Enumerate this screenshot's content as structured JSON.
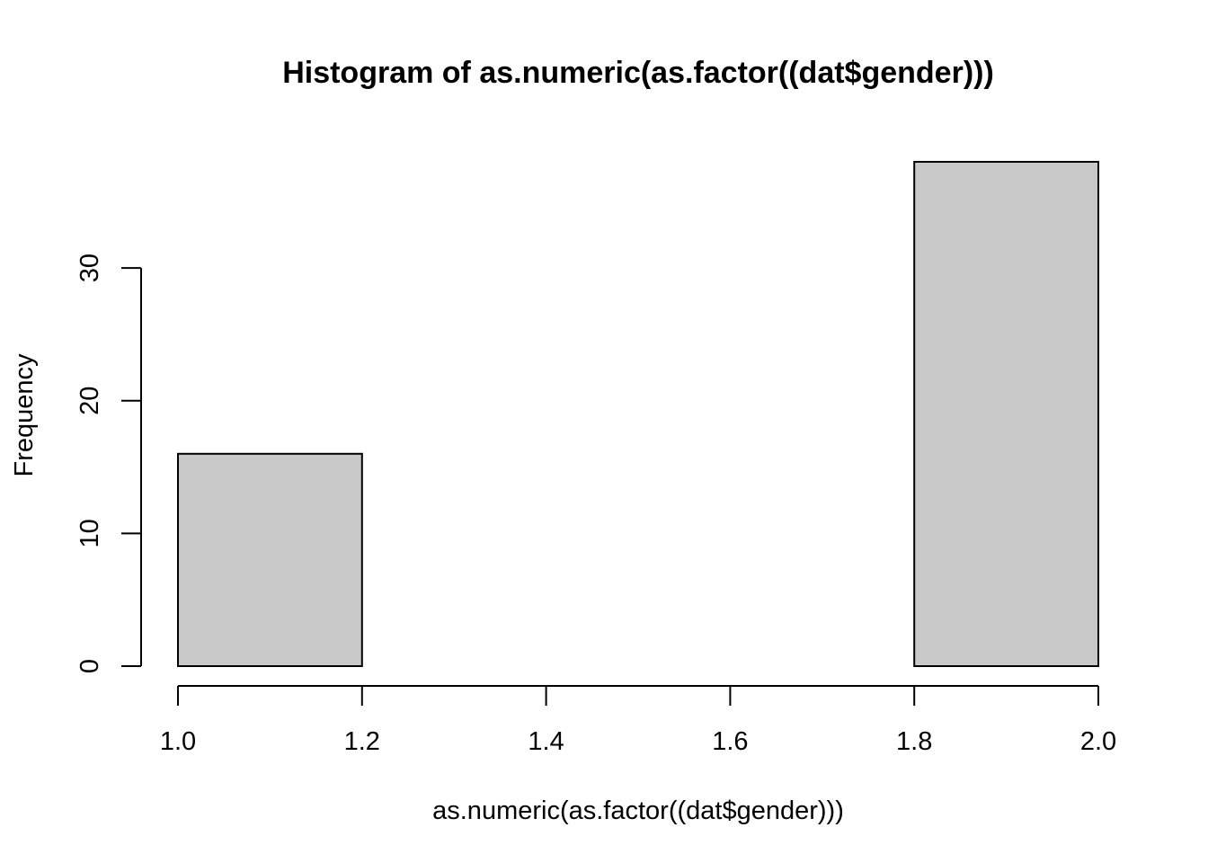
{
  "chart_data": {
    "type": "bar",
    "title": "Histogram of as.numeric(as.factor((dat$gender)))",
    "xlabel": "as.numeric(as.factor((dat$gender)))",
    "ylabel": "Frequency",
    "bins": [
      {
        "x0": 1.0,
        "x1": 1.2,
        "count": 16
      },
      {
        "x0": 1.2,
        "x1": 1.4,
        "count": 0
      },
      {
        "x0": 1.4,
        "x1": 1.6,
        "count": 0
      },
      {
        "x0": 1.6,
        "x1": 1.8,
        "count": 0
      },
      {
        "x0": 1.8,
        "x1": 2.0,
        "count": 38
      }
    ],
    "xlim": [
      1.0,
      2.0
    ],
    "ylim": [
      0,
      38
    ],
    "x_ticks": [
      1.0,
      1.2,
      1.4,
      1.6,
      1.8,
      2.0
    ],
    "x_tick_labels": [
      "1.0",
      "1.2",
      "1.4",
      "1.6",
      "1.8",
      "2.0"
    ],
    "y_ticks": [
      0,
      10,
      20,
      30
    ],
    "y_tick_labels": [
      "0",
      "10",
      "20",
      "30"
    ],
    "bar_color": "#c8c8c8",
    "grid": false,
    "legend": "none"
  }
}
